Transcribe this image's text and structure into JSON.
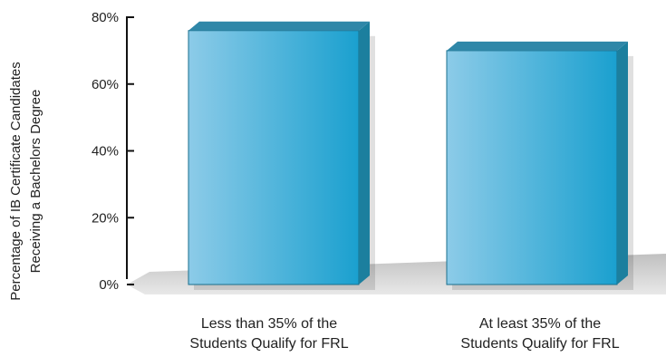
{
  "chart_data": {
    "type": "bar",
    "ylabel": [
      "Percentage of IB Certificate Candidates",
      "Receiving a Bachelors Degree"
    ],
    "categories": [
      [
        "Less than 35% of the",
        "Students Qualify for FRL"
      ],
      [
        "At least 35% of the",
        "Students Qualify for FRL"
      ]
    ],
    "values": [
      76,
      70
    ],
    "ylim": [
      0,
      80
    ],
    "yticks": [
      "0%",
      "20%",
      "40%",
      "60%",
      "80%"
    ],
    "grid": false,
    "legend": "none",
    "colors": {
      "bar_light": "#86c8e6",
      "bar_dark": "#1fa3cf",
      "bar_side": "#1c7f9e",
      "bar_top": "#2f87a8",
      "floor": "#cfcfcf",
      "axis": "#111111"
    }
  }
}
